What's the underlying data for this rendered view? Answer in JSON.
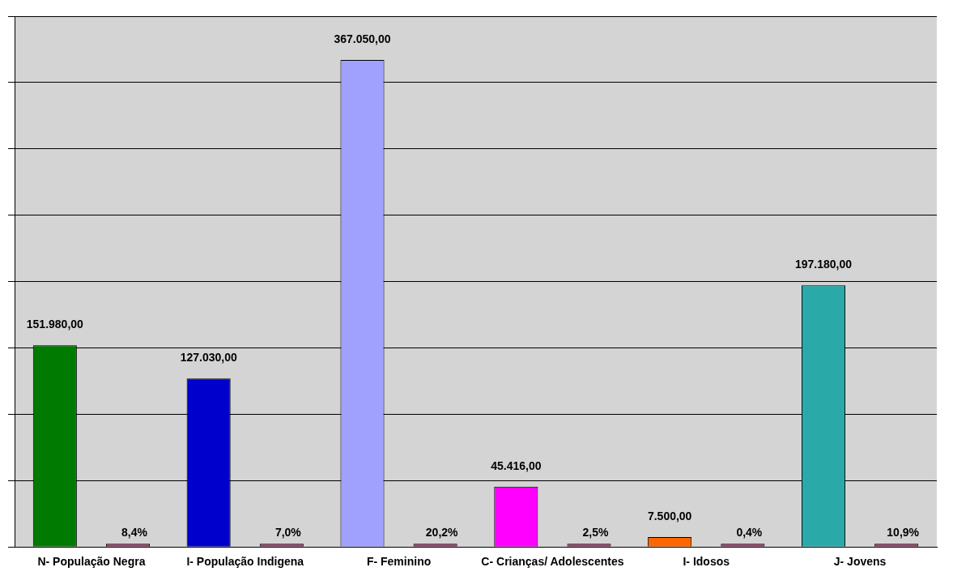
{
  "chart_data": {
    "type": "bar",
    "categories": [
      "N- População Negra",
      "I- População Indigena",
      "F- Feminino",
      "C- Crianças/ Adolescentes",
      "I- Idosos",
      "J- Jovens"
    ],
    "series": [
      {
        "colors": [
          "#007a00",
          "#0000cc",
          "#a0a0ff",
          "#ff00ff",
          "#ff6600",
          "#2aa9a9"
        ],
        "values": [
          151980,
          127030,
          367050,
          45416,
          7500,
          197180
        ],
        "value_labels": [
          "151.980,00",
          "127.030,00",
          "367.050,00",
          "45.416,00",
          "7.500,00",
          "197.180,00"
        ]
      },
      {
        "color": "#993366",
        "values": [
          8.4,
          7.0,
          20.2,
          2.5,
          0.4,
          10.9
        ],
        "value_labels": [
          "8,4%",
          "7,0%",
          "20,2%",
          "2,5%",
          "0,4%",
          "10,9%"
        ]
      }
    ],
    "ylim": [
      0,
      400000
    ],
    "yticks": [
      {
        "value": 0,
        "label": null
      },
      {
        "value": 50000,
        "label": null
      },
      {
        "value": 100000,
        "label": null
      },
      {
        "value": 150000,
        "label": null
      },
      {
        "value": 200000,
        "label": null
      },
      {
        "value": 250000,
        "label": null
      },
      {
        "value": 300000,
        "label": null
      },
      {
        "value": 350000,
        "label": null
      },
      {
        "value": 400000,
        "label": null
      }
    ],
    "tick_labels": "x",
    "grid": "y",
    "legend": false
  }
}
